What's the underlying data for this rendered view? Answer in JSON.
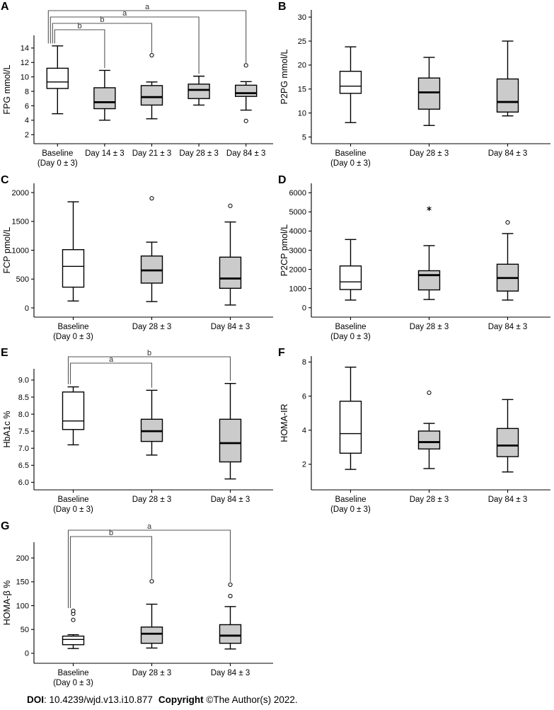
{
  "figure": {
    "background": "#ffffff",
    "box_fill_baseline": "#ffffff",
    "box_fill_followup": "#cbcbcb",
    "box_stroke": "#000000",
    "bracket_color": "#555555",
    "footer": {
      "doi_label": "DOI",
      "doi_value": ": 10.4239/wjd.v13.i10.877",
      "copyright_label": "Copyright",
      "copyright_value": "©The Author(s) 2022."
    }
  },
  "chart_data": [
    {
      "panel": "A",
      "type": "box",
      "ylabel": "FPG mmol/L",
      "ylim": [
        0.75,
        15.75
      ],
      "yticks": [
        2,
        4,
        6,
        8,
        10,
        12,
        14
      ],
      "ytick_labels": [
        "2",
        "4",
        "6",
        "8",
        "10",
        "12",
        "14"
      ],
      "legend_position": "none",
      "grid": false,
      "categories": [
        {
          "label": "Baseline",
          "sublabel": "(Day 0 ± 3)"
        },
        {
          "label": "Day 14 ± 3"
        },
        {
          "label": "Day 21 ± 3"
        },
        {
          "label": "Day 28 ± 3"
        },
        {
          "label": "Day 84 ± 3"
        }
      ],
      "boxes": [
        {
          "low": 4.9,
          "q1": 8.4,
          "median": 9.3,
          "q3": 11.2,
          "high": 14.3,
          "fill": "baseline",
          "outliers": []
        },
        {
          "low": 4.0,
          "q1": 5.6,
          "median": 6.5,
          "q3": 8.5,
          "high": 10.9,
          "fill": "followup",
          "outliers": []
        },
        {
          "low": 4.2,
          "q1": 6.1,
          "median": 7.2,
          "q3": 8.8,
          "high": 9.3,
          "fill": "followup",
          "outliers": [
            {
              "value": 13.0,
              "marker": "circle"
            }
          ]
        },
        {
          "low": 6.1,
          "q1": 7.0,
          "median": 8.2,
          "q3": 9.0,
          "high": 10.1,
          "fill": "followup",
          "outliers": []
        },
        {
          "low": 5.4,
          "q1": 7.3,
          "median": 7.75,
          "q3": 8.85,
          "high": 9.35,
          "fill": "followup",
          "outliers": [
            {
              "value": 11.6,
              "marker": "circle"
            },
            {
              "value": 3.9,
              "marker": "circle"
            }
          ]
        }
      ],
      "brackets": [
        {
          "from": 0,
          "to": 1,
          "label": "b"
        },
        {
          "from": 0,
          "to": 2,
          "label": "b"
        },
        {
          "from": 0,
          "to": 3,
          "label": "a"
        },
        {
          "from": 0,
          "to": 4,
          "label": "a"
        }
      ]
    },
    {
      "panel": "B",
      "type": "box",
      "ylabel": "P2PG mmol/L",
      "ylim": [
        3.6,
        31.5
      ],
      "yticks": [
        5,
        10,
        15,
        20,
        25,
        30
      ],
      "ytick_labels": [
        "5",
        "10",
        "15",
        "20",
        "25",
        "30"
      ],
      "legend_position": "none",
      "grid": false,
      "categories": [
        {
          "label": "Baseline",
          "sublabel": "(Day 0 ± 3)"
        },
        {
          "label": "Day 28 ± 3"
        },
        {
          "label": "Day 84 ± 3"
        }
      ],
      "boxes": [
        {
          "low": 8.0,
          "q1": 14.1,
          "median": 15.6,
          "q3": 18.7,
          "high": 23.8,
          "fill": "baseline",
          "outliers": []
        },
        {
          "low": 7.4,
          "q1": 10.8,
          "median": 14.3,
          "q3": 17.3,
          "high": 21.6,
          "fill": "followup",
          "outliers": []
        },
        {
          "low": 9.4,
          "q1": 10.2,
          "median": 12.3,
          "q3": 17.1,
          "high": 25.0,
          "fill": "followup",
          "outliers": []
        }
      ],
      "brackets": []
    },
    {
      "panel": "C",
      "type": "box",
      "ylabel": "FCP pmol/L",
      "ylim": [
        -160,
        2160
      ],
      "yticks": [
        0,
        500,
        1000,
        1500,
        2000
      ],
      "ytick_labels": [
        "0",
        "500",
        "1000",
        "1500",
        "2000"
      ],
      "legend_position": "none",
      "grid": false,
      "categories": [
        {
          "label": "Baseline",
          "sublabel": "(Day 0 ± 3)"
        },
        {
          "label": "Day 28 ± 3"
        },
        {
          "label": "Day 84 ± 3"
        }
      ],
      "boxes": [
        {
          "low": 120,
          "q1": 360,
          "median": 720,
          "q3": 1010,
          "high": 1840,
          "fill": "baseline",
          "outliers": []
        },
        {
          "low": 110,
          "q1": 430,
          "median": 650,
          "q3": 900,
          "high": 1140,
          "fill": "followup",
          "outliers": [
            {
              "value": 1900,
              "marker": "circle"
            }
          ]
        },
        {
          "low": 50,
          "q1": 340,
          "median": 510,
          "q3": 880,
          "high": 1490,
          "fill": "followup",
          "outliers": [
            {
              "value": 1770,
              "marker": "circle"
            }
          ]
        }
      ],
      "brackets": []
    },
    {
      "panel": "D",
      "type": "box",
      "ylabel": "P2CP pmol/L",
      "ylim": [
        -490,
        6490
      ],
      "yticks": [
        0,
        1000,
        2000,
        3000,
        4000,
        5000,
        6000
      ],
      "ytick_labels": [
        "0",
        "1000",
        "2000",
        "3000",
        "4000",
        "5000",
        "6000"
      ],
      "legend_position": "none",
      "grid": false,
      "categories": [
        {
          "label": "Baseline",
          "sublabel": "(Day 0 ± 3)"
        },
        {
          "label": "Day 28 ± 3"
        },
        {
          "label": "Day 84 ± 3"
        }
      ],
      "boxes": [
        {
          "low": 400,
          "q1": 950,
          "median": 1350,
          "q3": 2180,
          "high": 3560,
          "fill": "baseline",
          "outliers": []
        },
        {
          "low": 430,
          "q1": 930,
          "median": 1700,
          "q3": 1930,
          "high": 3240,
          "fill": "followup",
          "outliers": [
            {
              "value": 5170,
              "marker": "star"
            }
          ]
        },
        {
          "low": 400,
          "q1": 870,
          "median": 1550,
          "q3": 2270,
          "high": 3870,
          "fill": "followup",
          "outliers": [
            {
              "value": 4450,
              "marker": "circle"
            }
          ]
        }
      ],
      "brackets": []
    },
    {
      "panel": "E",
      "type": "box",
      "ylabel": "HbA1c %",
      "ylim": [
        5.78,
        9.33
      ],
      "yticks": [
        6.0,
        6.5,
        7.0,
        7.5,
        8.0,
        8.5,
        9.0
      ],
      "ytick_labels": [
        "6.0",
        "6.5",
        "7.0",
        "7.5",
        "8.0",
        "8.5",
        "9.0"
      ],
      "legend_position": "none",
      "grid": false,
      "categories": [
        {
          "label": "Baseline",
          "sublabel": "(Day 0 ± 3)"
        },
        {
          "label": "Day 28 ± 3"
        },
        {
          "label": "Day 84 ± 3"
        }
      ],
      "boxes": [
        {
          "low": 7.1,
          "q1": 7.55,
          "median": 7.8,
          "q3": 8.65,
          "high": 8.8,
          "fill": "baseline",
          "outliers": []
        },
        {
          "low": 6.8,
          "q1": 7.2,
          "median": 7.5,
          "q3": 7.85,
          "high": 8.7,
          "fill": "followup",
          "outliers": []
        },
        {
          "low": 6.1,
          "q1": 6.6,
          "median": 7.15,
          "q3": 7.85,
          "high": 8.9,
          "fill": "followup",
          "outliers": []
        }
      ],
      "brackets": [
        {
          "from": 0,
          "to": 1,
          "label": "a"
        },
        {
          "from": 0,
          "to": 2,
          "label": "b"
        }
      ]
    },
    {
      "panel": "F",
      "type": "box",
      "ylabel": "HOMA-IR",
      "ylim": [
        0.5,
        8.35
      ],
      "yticks": [
        2,
        4,
        6,
        8
      ],
      "ytick_labels": [
        "2",
        "4",
        "6",
        "8"
      ],
      "legend_position": "none",
      "grid": false,
      "categories": [
        {
          "label": "Baseline",
          "sublabel": "(Day 0 ± 3)"
        },
        {
          "label": "Day 28 ± 3"
        },
        {
          "label": "Day 84 ± 3"
        }
      ],
      "boxes": [
        {
          "low": 1.7,
          "q1": 2.65,
          "median": 3.8,
          "q3": 5.7,
          "high": 7.7,
          "fill": "baseline",
          "outliers": []
        },
        {
          "low": 1.75,
          "q1": 2.9,
          "median": 3.3,
          "q3": 3.95,
          "high": 4.4,
          "fill": "followup",
          "outliers": [
            {
              "value": 6.2,
              "marker": "circle"
            }
          ]
        },
        {
          "low": 1.55,
          "q1": 2.45,
          "median": 3.1,
          "q3": 4.1,
          "high": 5.8,
          "fill": "followup",
          "outliers": []
        }
      ],
      "brackets": []
    },
    {
      "panel": "G",
      "type": "box",
      "ylabel": "HOMA-β %",
      "ylim": [
        -21,
        233
      ],
      "yticks": [
        0,
        50,
        100,
        150,
        200
      ],
      "ytick_labels": [
        "0",
        "50",
        "100",
        "150",
        "200"
      ],
      "legend_position": "none",
      "grid": false,
      "categories": [
        {
          "label": "Baseline",
          "sublabel": "(Day 0 ± 3)"
        },
        {
          "label": "Day 28 ± 3"
        },
        {
          "label": "Day 84 ± 3"
        }
      ],
      "boxes": [
        {
          "low": 10,
          "q1": 18,
          "median": 29,
          "q3": 36,
          "high": 39,
          "fill": "baseline",
          "outliers": [
            {
              "value": 70,
              "marker": "circle"
            },
            {
              "value": 83,
              "marker": "circle"
            },
            {
              "value": 89,
              "marker": "circle"
            }
          ]
        },
        {
          "low": 11,
          "q1": 21,
          "median": 41,
          "q3": 55,
          "high": 103,
          "fill": "followup",
          "outliers": [
            {
              "value": 151,
              "marker": "circle"
            }
          ]
        },
        {
          "low": 9,
          "q1": 21,
          "median": 37,
          "q3": 60,
          "high": 98,
          "fill": "followup",
          "outliers": [
            {
              "value": 120,
              "marker": "circle"
            },
            {
              "value": 144,
              "marker": "circle"
            }
          ]
        }
      ],
      "brackets": [
        {
          "from": 0,
          "to": 1,
          "label": "b"
        },
        {
          "from": 0,
          "to": 2,
          "label": "a"
        }
      ]
    }
  ]
}
